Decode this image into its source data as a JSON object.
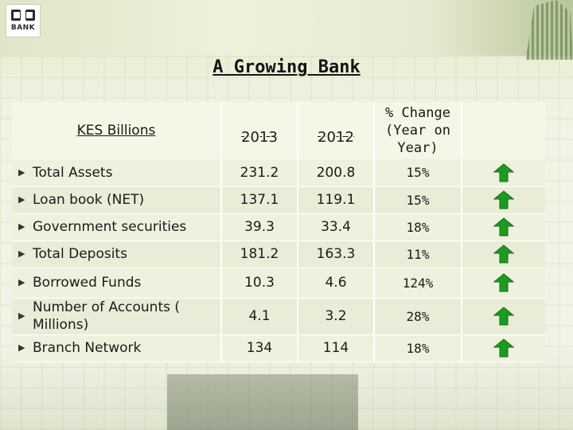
{
  "logo": {
    "text": "BANK",
    "icon": "bank-logo-icon"
  },
  "title": "A Growing Bank",
  "table": {
    "header": {
      "label": "KES  Billions",
      "year1": "2013",
      "year2": "2012",
      "change_lines": [
        "% Change",
        "(Year on",
        "Year)"
      ]
    },
    "rows": [
      {
        "label": "Total Assets",
        "v2013": "231.2",
        "v2012": "200.8",
        "change": "15%",
        "trend": "up"
      },
      {
        "label": "Loan book (NET)",
        "v2013": "137.1",
        "v2012": "119.1",
        "change": "15%",
        "trend": "up"
      },
      {
        "label": "Government securities",
        "v2013": "39.3",
        "v2012": "33.4",
        "change": "18%",
        "trend": "up"
      },
      {
        "label": "Total  Deposits",
        "v2013": "181.2",
        "v2012": "163.3",
        "change": "11%",
        "trend": "up"
      },
      {
        "label": "Borrowed Funds",
        "v2013": "10.3",
        "v2012": "4.6",
        "change": "124%",
        "trend": "up"
      },
      {
        "label": "Number of Accounts ( Millions)",
        "v2013": "4.1",
        "v2012": "3.2",
        "change": "28%",
        "trend": "up"
      },
      {
        "label": "Branch Network",
        "v2013": "134",
        "v2012": "114",
        "change": "18%",
        "trend": "up"
      }
    ]
  },
  "colors": {
    "arrow": "#1e9a22",
    "arrow_dark": "#0d6e12"
  }
}
